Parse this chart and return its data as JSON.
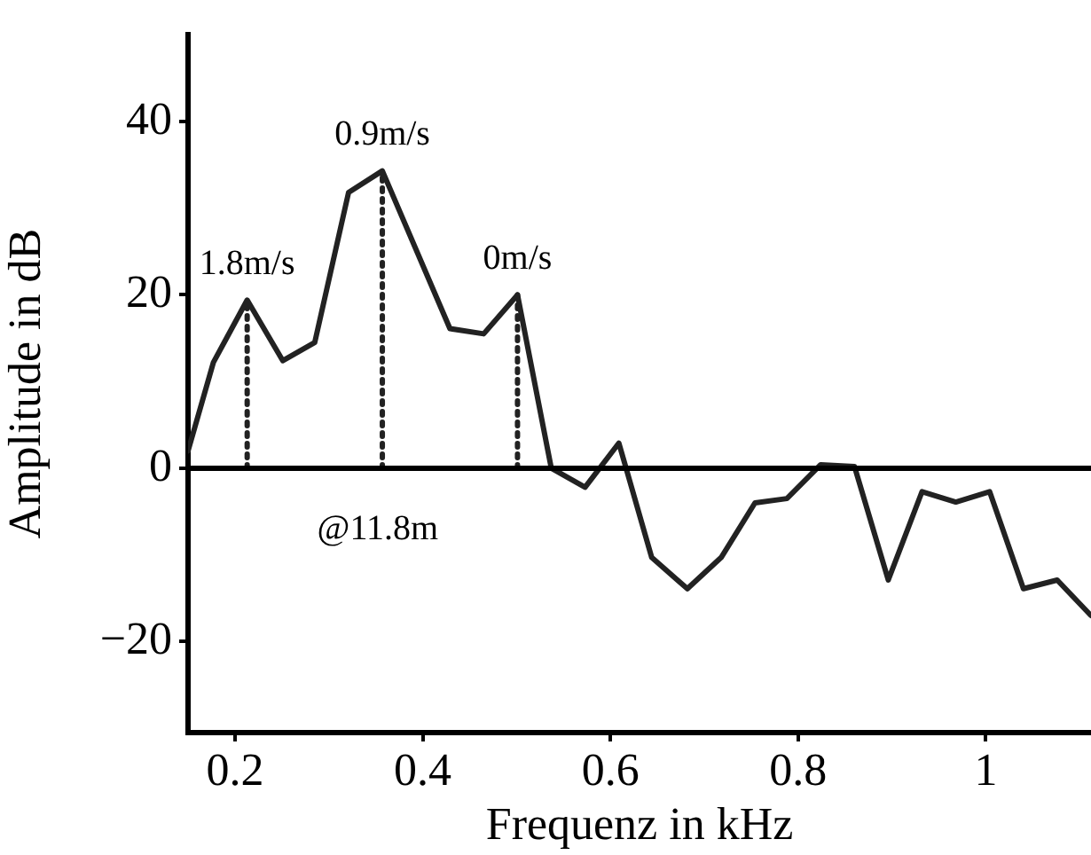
{
  "chart_data": {
    "type": "line",
    "xlabel": "Frequenz in kHz",
    "ylabel": "Amplitude in dB",
    "xlim": [
      0.15,
      1.112
    ],
    "ylim": [
      -30.5,
      50
    ],
    "xticks": [
      0.2,
      0.4,
      0.6,
      0.8,
      1
    ],
    "yticks": [
      -20,
      0,
      20,
      40
    ],
    "grid": false,
    "legend": false,
    "marker": "none",
    "series": [
      {
        "color": "#222222",
        "line_style": "solid",
        "x": [
          0.15,
          0.177,
          0.213,
          0.251,
          0.285,
          0.321,
          0.357,
          0.429,
          0.465,
          0.501,
          0.537,
          0.573,
          0.609,
          0.644,
          0.682,
          0.718,
          0.754,
          0.788,
          0.824,
          0.86,
          0.896,
          0.932,
          0.968,
          1.004,
          1.04,
          1.076,
          1.112
        ],
        "values": [
          2,
          12.2,
          19.4,
          12.4,
          14.5,
          31.8,
          34.3,
          16.1,
          15.5,
          20,
          0,
          -2.2,
          2.9,
          -10.3,
          -13.9,
          -10.3,
          -4,
          -3.5,
          0.4,
          0.2,
          -12.9,
          -2.7,
          -3.9,
          -2.7,
          -13.9,
          -12.9,
          -17
        ]
      },
      {
        "color": "#222222",
        "line_style": "dotted",
        "x": [
          0.213,
          0.213
        ],
        "values": [
          0,
          19.4
        ]
      },
      {
        "color": "#222222",
        "line_style": "dotted",
        "x": [
          0.357,
          0.357
        ],
        "values": [
          0,
          34.3
        ]
      },
      {
        "color": "#222222",
        "line_style": "dotted",
        "x": [
          0.501,
          0.501
        ],
        "values": [
          0,
          20
        ]
      }
    ],
    "ref_lines": [
      {
        "axis": "y",
        "value": 0,
        "color": "#000000",
        "line_style": "solid"
      }
    ],
    "annotations": [
      {
        "text": "1.8m/s",
        "x": 0.213,
        "y": 19.4
      },
      {
        "text": "0.9m/s",
        "x": 0.357,
        "y": 34.3
      },
      {
        "text": "0m/s",
        "x": 0.501,
        "y": 20
      },
      "@11.8m"
    ]
  }
}
